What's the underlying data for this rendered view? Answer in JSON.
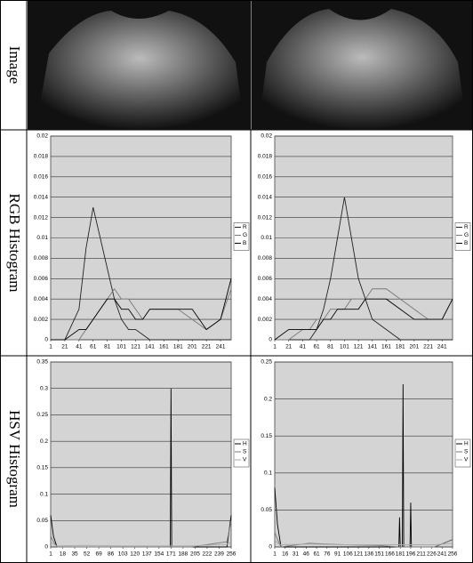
{
  "row_labels": [
    "Image",
    "RGB Histogram",
    "HSV Histogram"
  ],
  "chart_data": [
    {
      "type": "line",
      "ylim": [
        0,
        0.02
      ],
      "yticks": [
        0,
        0.002,
        0.004,
        0.006,
        0.008,
        0.01,
        0.012,
        0.014,
        0.016,
        0.018,
        0.02
      ],
      "xlim": [
        1,
        256
      ],
      "xticks": [
        1,
        21,
        41,
        61,
        81,
        101,
        121,
        141,
        161,
        181,
        201,
        221,
        241
      ],
      "grid": true,
      "x": [
        1,
        21,
        41,
        51,
        61,
        71,
        81,
        91,
        101,
        111,
        121,
        131,
        141,
        161,
        181,
        201,
        221,
        241,
        256
      ],
      "series": [
        {
          "name": "R",
          "color": "#222222",
          "values": [
            0,
            0,
            0.003,
            0.009,
            0.013,
            0.01,
            0.007,
            0.004,
            0.002,
            0.001,
            0.001,
            0.0005,
            0,
            0,
            0,
            0,
            0,
            0,
            0
          ]
        },
        {
          "name": "G",
          "color": "#777777",
          "values": [
            0,
            0,
            0,
            0.001,
            0.002,
            0.003,
            0.004,
            0.005,
            0.004,
            0.004,
            0.003,
            0.002,
            0.003,
            0.003,
            0.003,
            0.002,
            0.001,
            0.002,
            0.005
          ]
        },
        {
          "name": "B",
          "color": "#000000",
          "values": [
            0,
            0,
            0.001,
            0.001,
            0.002,
            0.003,
            0.004,
            0.004,
            0.003,
            0.003,
            0.002,
            0.002,
            0.003,
            0.003,
            0.003,
            0.003,
            0.001,
            0.002,
            0.006
          ]
        }
      ]
    },
    {
      "type": "line",
      "ylim": [
        0,
        0.02
      ],
      "yticks": [
        0,
        0.002,
        0.004,
        0.006,
        0.008,
        0.01,
        0.012,
        0.014,
        0.016,
        0.018,
        0.02
      ],
      "xlim": [
        1,
        256
      ],
      "xticks": [
        1,
        21,
        41,
        61,
        81,
        101,
        121,
        141,
        161,
        181,
        201,
        221,
        241
      ],
      "grid": true,
      "x": [
        1,
        21,
        41,
        51,
        61,
        71,
        81,
        91,
        101,
        111,
        121,
        131,
        141,
        161,
        181,
        201,
        221,
        241,
        256
      ],
      "series": [
        {
          "name": "R",
          "color": "#222222",
          "values": [
            0,
            0,
            0,
            0,
            0.001,
            0.003,
            0.006,
            0.01,
            0.014,
            0.01,
            0.006,
            0.004,
            0.002,
            0.001,
            0,
            0,
            0,
            0,
            0
          ]
        },
        {
          "name": "G",
          "color": "#777777",
          "values": [
            0,
            0,
            0.001,
            0.001,
            0.002,
            0.002,
            0.003,
            0.003,
            0.003,
            0.004,
            0.004,
            0.004,
            0.005,
            0.005,
            0.004,
            0.003,
            0.002,
            0.002,
            0.004
          ]
        },
        {
          "name": "B",
          "color": "#000000",
          "values": [
            0,
            0.001,
            0.001,
            0.001,
            0.001,
            0.002,
            0.002,
            0.003,
            0.003,
            0.003,
            0.003,
            0.004,
            0.004,
            0.004,
            0.003,
            0.002,
            0.002,
            0.002,
            0.004
          ]
        }
      ]
    },
    {
      "type": "line",
      "ylim": [
        0,
        0.35
      ],
      "yticks": [
        0,
        0.05,
        0.1,
        0.15,
        0.2,
        0.25,
        0.3,
        0.35
      ],
      "xlim": [
        1,
        256
      ],
      "xticks": [
        1,
        18,
        35,
        52,
        69,
        86,
        103,
        120,
        137,
        154,
        171,
        188,
        205,
        222,
        239,
        256
      ],
      "grid": true,
      "x": [
        1,
        5,
        10,
        50,
        100,
        150,
        170,
        171,
        172,
        200,
        250,
        256
      ],
      "series": [
        {
          "name": "H",
          "color": "#000000",
          "values": [
            0.06,
            0.02,
            0,
            0,
            0,
            0,
            0,
            0.3,
            0,
            0,
            0,
            0.06
          ]
        },
        {
          "name": "S",
          "color": "#777777",
          "values": [
            0.02,
            0.01,
            0,
            0,
            0,
            0,
            0,
            0,
            0,
            0,
            0.01,
            0.05
          ]
        },
        {
          "name": "V",
          "color": "#aaaaaa",
          "values": [
            0.01,
            0.005,
            0.002,
            0.003,
            0.002,
            0.002,
            0.002,
            0.002,
            0.002,
            0.002,
            0.005,
            0.01
          ]
        }
      ]
    },
    {
      "type": "line",
      "ylim": [
        0,
        0.25
      ],
      "yticks": [
        0,
        0.05,
        0.1,
        0.15,
        0.2,
        0.25
      ],
      "xlim": [
        1,
        256
      ],
      "xticks": [
        1,
        16,
        31,
        46,
        61,
        76,
        91,
        106,
        121,
        136,
        151,
        166,
        181,
        196,
        211,
        226,
        241,
        256
      ],
      "grid": true,
      "x": [
        1,
        5,
        10,
        50,
        100,
        150,
        179,
        180,
        181,
        184,
        185,
        186,
        195,
        196,
        197,
        230,
        256
      ],
      "series": [
        {
          "name": "H",
          "color": "#000000",
          "values": [
            0.08,
            0.03,
            0,
            0,
            0,
            0,
            0,
            0.04,
            0,
            0,
            0.22,
            0,
            0,
            0.06,
            0,
            0,
            0.01
          ]
        },
        {
          "name": "S",
          "color": "#777777",
          "values": [
            0.02,
            0.01,
            0,
            0.005,
            0.003,
            0.002,
            0,
            0,
            0,
            0,
            0,
            0,
            0,
            0,
            0,
            0,
            0.01
          ]
        },
        {
          "name": "V",
          "color": "#aaaaaa",
          "values": [
            0.01,
            0.005,
            0.003,
            0.004,
            0.003,
            0.003,
            0.003,
            0.003,
            0.003,
            0.003,
            0.003,
            0.003,
            0.003,
            0.003,
            0.003,
            0.003,
            0.005
          ]
        }
      ]
    }
  ]
}
